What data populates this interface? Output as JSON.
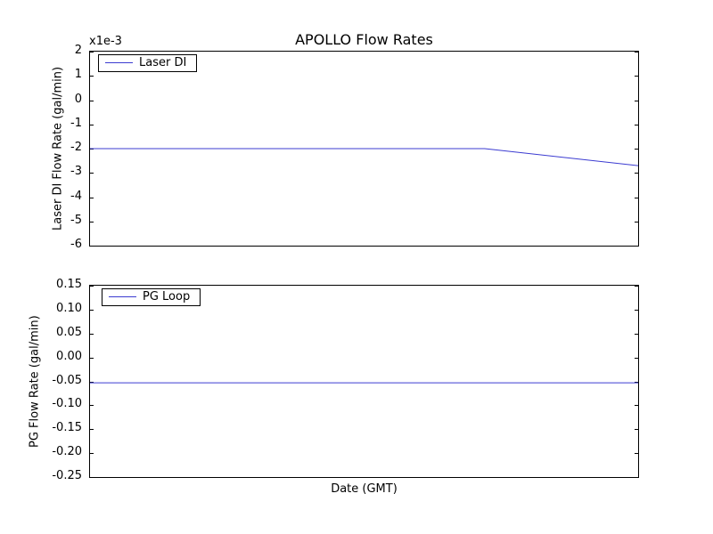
{
  "colors": {
    "line": "#3b3bd1",
    "axis": "#000000",
    "background": "#ffffff"
  },
  "chart_data": [
    {
      "name": "laser-di",
      "type": "line",
      "title": "APOLLO Flow Rates",
      "ylabel": "Laser DI Flow Rate (gal/min)",
      "y_offset_text": "x1e-3",
      "y_units_multiplier": "1e-3",
      "ylim": [
        -6,
        2
      ],
      "yticks": [
        {
          "value": 2,
          "label": "2"
        },
        {
          "value": 1,
          "label": "1"
        },
        {
          "value": 0,
          "label": "0"
        },
        {
          "value": -1,
          "label": "-1"
        },
        {
          "value": -2,
          "label": "-2"
        },
        {
          "value": -3,
          "label": "-3"
        },
        {
          "value": -4,
          "label": "-4"
        },
        {
          "value": -5,
          "label": "-5"
        },
        {
          "value": -6,
          "label": "-6"
        }
      ],
      "x_tick_labels": [],
      "grid": false,
      "legend": {
        "position": "upper left",
        "entries": [
          "Laser DI"
        ]
      },
      "series": [
        {
          "name": "Laser DI",
          "x_normalized": [
            0,
            0.72,
            1
          ],
          "y": [
            -2,
            -2,
            -2.7
          ]
        }
      ]
    },
    {
      "name": "pg-loop",
      "type": "line",
      "ylabel": "PG Flow Rate (gal/min)",
      "xlabel": "Date (GMT)",
      "ylim": [
        -0.25,
        0.15
      ],
      "yticks": [
        {
          "value": 0.15,
          "label": "0.15"
        },
        {
          "value": 0.1,
          "label": "0.10"
        },
        {
          "value": 0.05,
          "label": "0.05"
        },
        {
          "value": 0.0,
          "label": "0.00"
        },
        {
          "value": -0.05,
          "label": "-0.05"
        },
        {
          "value": -0.1,
          "label": "-0.10"
        },
        {
          "value": -0.15,
          "label": "-0.15"
        },
        {
          "value": -0.2,
          "label": "-0.20"
        },
        {
          "value": -0.25,
          "label": "-0.25"
        }
      ],
      "x_tick_labels": [],
      "grid": false,
      "legend": {
        "position": "upper left",
        "entries": [
          "PG Loop"
        ]
      },
      "series": [
        {
          "name": "PG Loop",
          "x_normalized": [
            0,
            1
          ],
          "y": [
            -0.053,
            -0.053
          ]
        }
      ]
    }
  ]
}
